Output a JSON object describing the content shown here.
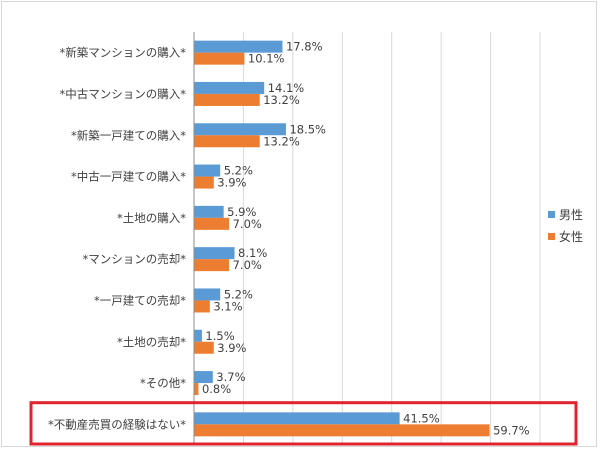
{
  "chart_data": {
    "type": "bar",
    "orientation": "horizontal",
    "categories": [
      "*新築マンションの購入*",
      "*中古マンションの購入*",
      "*新築一戸建ての購入*",
      "*中古一戸建ての購入*",
      "*土地の購入*",
      "*マンションの売却*",
      "*一戸建ての売却*",
      "*土地の売却*",
      "*その他*",
      "*不動産売買の経験はない*"
    ],
    "series": [
      {
        "name": "男性",
        "color": "#5b9bd5",
        "values": [
          17.8,
          14.1,
          18.5,
          5.2,
          5.9,
          8.1,
          5.2,
          1.5,
          3.7,
          41.5
        ],
        "labels": [
          "17.8%",
          "14.1%",
          "18.5%",
          "5.2%",
          "5.9%",
          "8.1%",
          "5.2%",
          "1.5%",
          "3.7%",
          "41.5%"
        ]
      },
      {
        "name": "女性",
        "color": "#ed7d31",
        "values": [
          10.1,
          13.2,
          13.2,
          3.9,
          7.0,
          7.0,
          3.1,
          3.9,
          0.8,
          59.7
        ],
        "labels": [
          "10.1%",
          "13.2%",
          "13.2%",
          "3.9%",
          "7.0%",
          "7.0%",
          "3.1%",
          "3.9%",
          "0.8%",
          "59.7%"
        ]
      }
    ],
    "xlim": [
      0,
      70
    ],
    "grid": true,
    "legend": "right",
    "highlight": {
      "category_index": 9,
      "color": "#e0242f"
    }
  }
}
